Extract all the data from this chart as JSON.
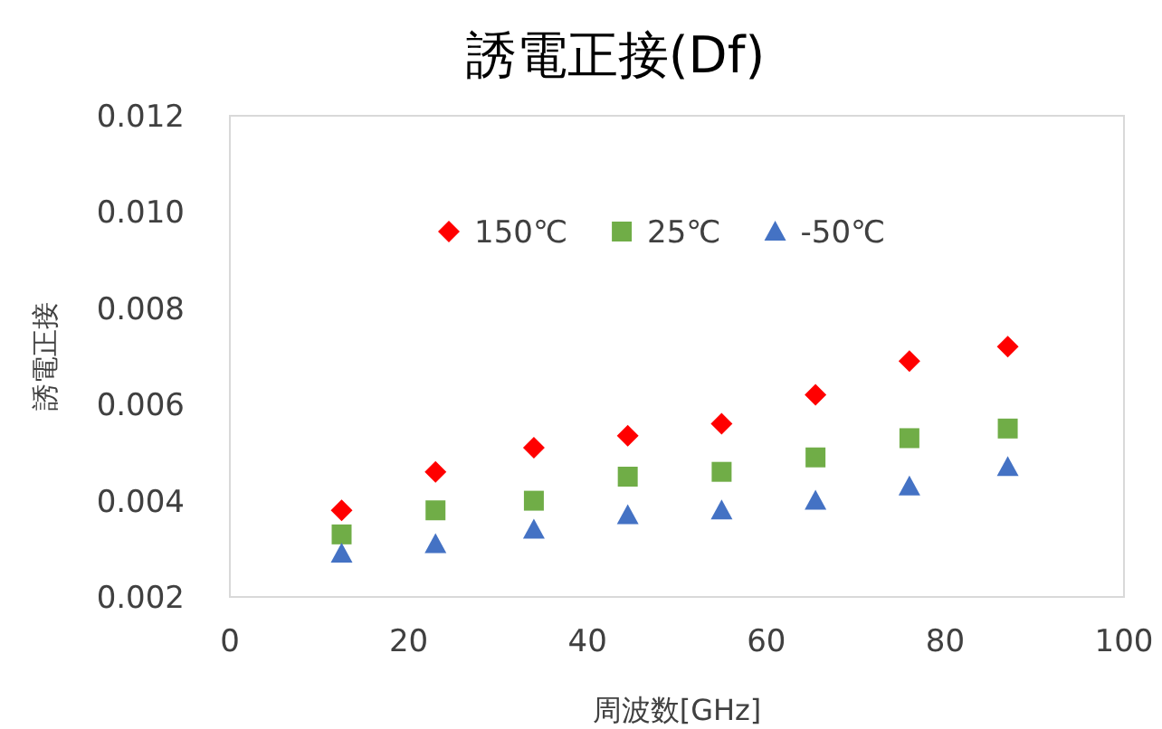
{
  "chart_data": {
    "type": "scatter",
    "title": "誘電正接(Df)",
    "xlabel": "周波数[GHz]",
    "ylabel": "誘電正接",
    "x": [
      12.5,
      23,
      34,
      44.5,
      55,
      65.5,
      76,
      87
    ],
    "series": [
      {
        "name": "150℃",
        "color": "#ff0000",
        "marker": "diamond",
        "values": [
          0.0038,
          0.0046,
          0.0051,
          0.00535,
          0.0056,
          0.0062,
          0.0069,
          0.0072
        ]
      },
      {
        "name": "25℃",
        "color": "#70ad47",
        "marker": "square",
        "values": [
          0.0033,
          0.0038,
          0.004,
          0.0045,
          0.0046,
          0.0049,
          0.0053,
          0.0055
        ]
      },
      {
        "name": "-50℃",
        "color": "#4472c4",
        "marker": "triangle",
        "values": [
          0.0029,
          0.0031,
          0.0034,
          0.0037,
          0.0038,
          0.004,
          0.0043,
          0.0047
        ]
      }
    ],
    "xlim": [
      0,
      100
    ],
    "xticks": [
      0,
      20,
      40,
      60,
      80,
      100
    ],
    "ylim": [
      0.002,
      0.012
    ],
    "yticks": [
      {
        "value": 0.002,
        "label": "0.002"
      },
      {
        "value": 0.004,
        "label": "0.004"
      },
      {
        "value": 0.006,
        "label": "0.006"
      },
      {
        "value": 0.008,
        "label": "0.008"
      },
      {
        "value": 0.01,
        "label": "0.010"
      },
      {
        "value": 0.012,
        "label": "0.012"
      }
    ],
    "grid": false,
    "legend": "top"
  }
}
